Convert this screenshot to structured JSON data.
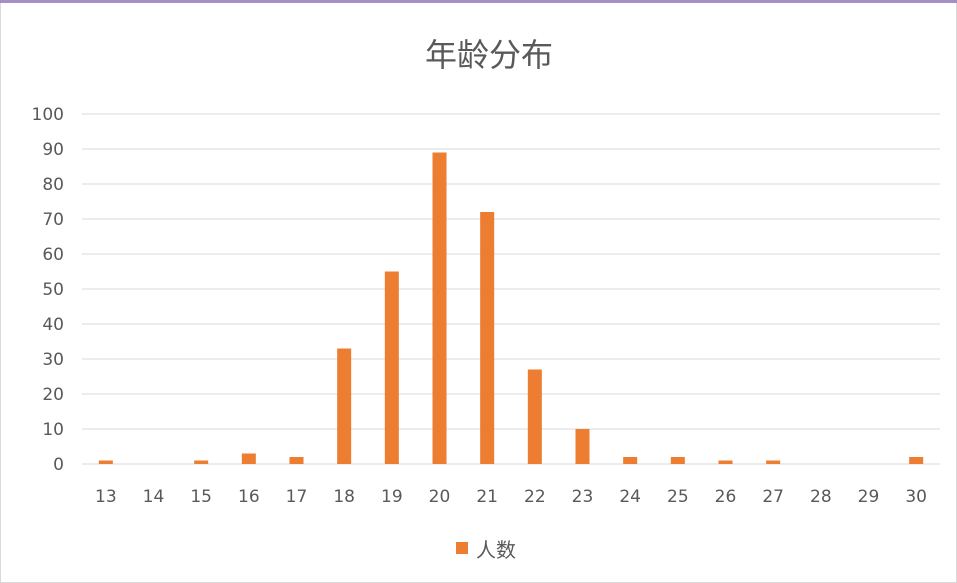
{
  "chart_data": {
    "type": "bar",
    "title": "年龄分布",
    "xlabel": "",
    "ylabel": "",
    "categories": [
      "13",
      "14",
      "15",
      "16",
      "17",
      "18",
      "19",
      "20",
      "21",
      "22",
      "23",
      "24",
      "25",
      "26",
      "27",
      "28",
      "29",
      "30"
    ],
    "series": [
      {
        "name": "人数",
        "values": [
          1,
          0,
          1,
          3,
          2,
          33,
          55,
          89,
          72,
          27,
          10,
          2,
          2,
          1,
          1,
          0,
          0,
          2
        ],
        "color": "#ed7d31"
      }
    ],
    "ylim": [
      0,
      100
    ],
    "yticks": [
      0,
      10,
      20,
      30,
      40,
      50,
      60,
      70,
      80,
      90,
      100
    ],
    "grid": true,
    "legend": "bottom",
    "colors": {
      "bar": "#ed7d31",
      "grid": "#d9d9d9",
      "text": "#595959",
      "title": "#595959"
    }
  }
}
